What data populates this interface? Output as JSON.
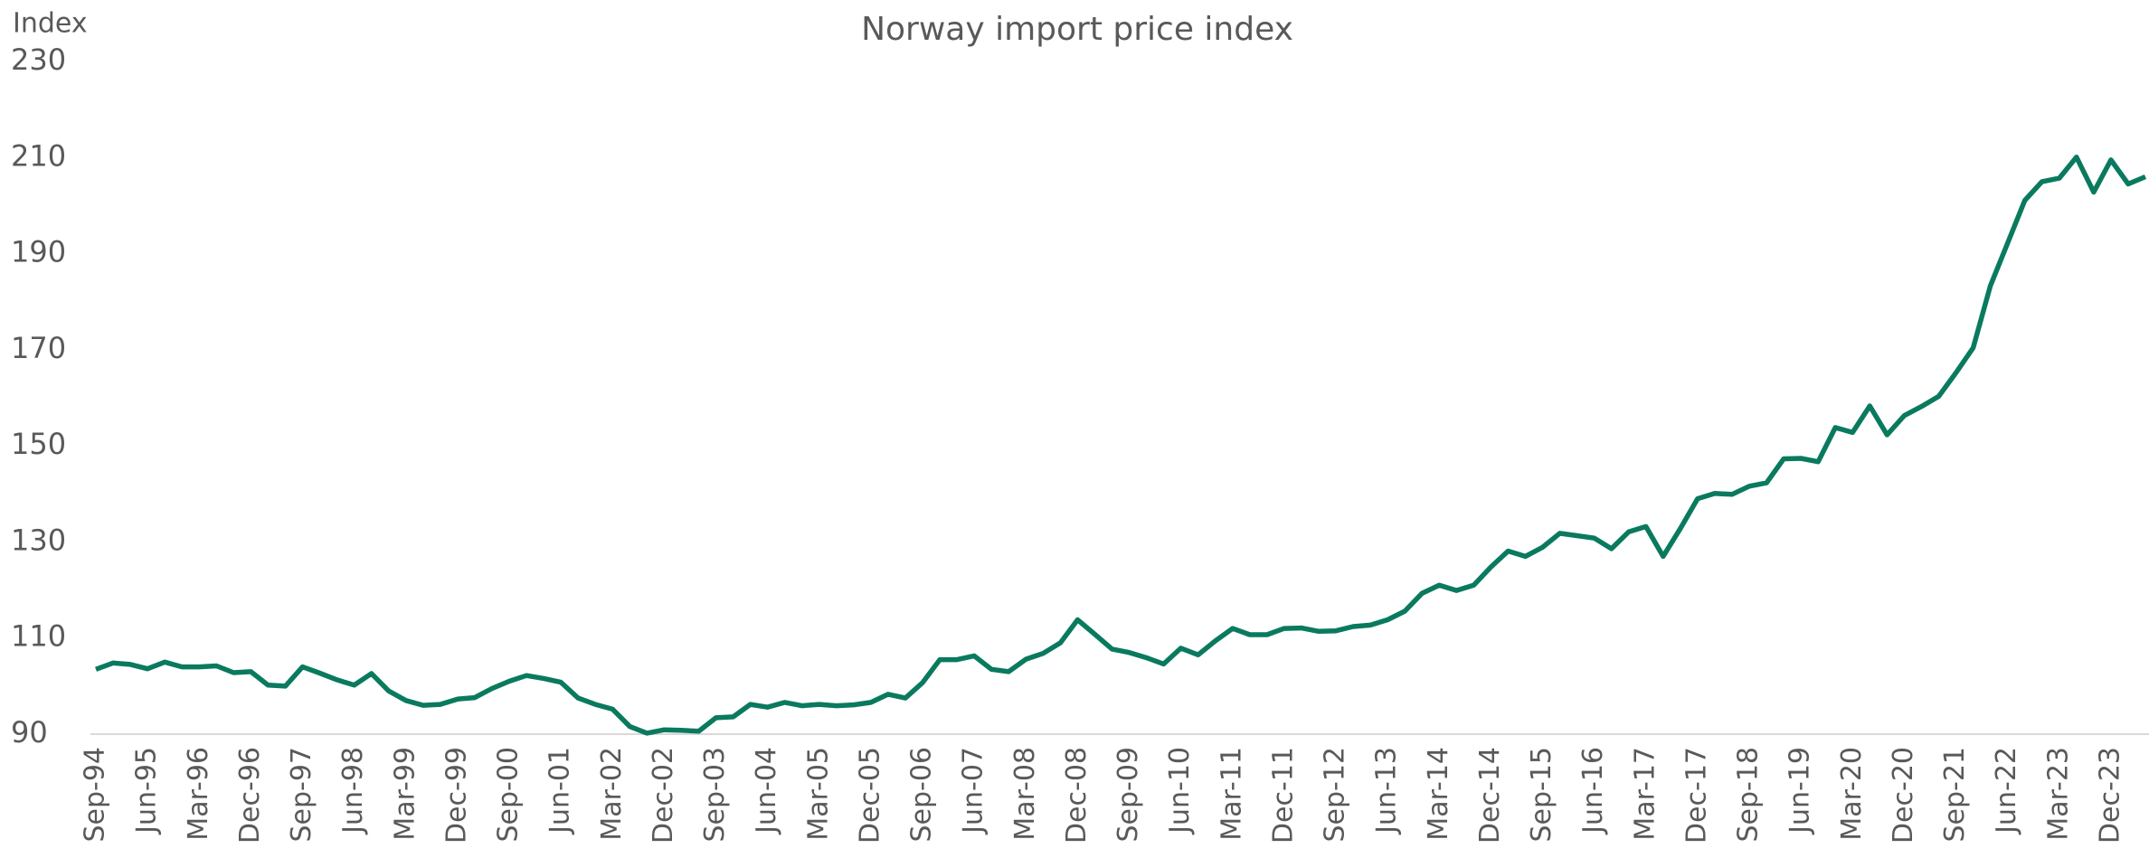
{
  "chart_data": {
    "type": "line",
    "title": "Norway import price index",
    "y_label": "Index",
    "categories": [
      "Sep-94",
      null,
      null,
      "Jun-95",
      null,
      null,
      "Mar-96",
      null,
      null,
      "Dec-96",
      null,
      null,
      "Sep-97",
      null,
      null,
      "Jun-98",
      null,
      null,
      "Mar-99",
      null,
      null,
      "Dec-99",
      null,
      null,
      "Sep-00",
      null,
      null,
      "Jun-01",
      null,
      null,
      "Mar-02",
      null,
      null,
      "Dec-02",
      null,
      null,
      "Sep-03",
      null,
      null,
      "Jun-04",
      null,
      null,
      "Mar-05",
      null,
      null,
      "Dec-05",
      null,
      null,
      "Sep-06",
      null,
      null,
      "Jun-07",
      null,
      null,
      "Mar-08",
      null,
      null,
      "Dec-08",
      null,
      null,
      "Sep-09",
      null,
      null,
      "Jun-10",
      null,
      null,
      "Mar-11",
      null,
      null,
      "Dec-11",
      null,
      null,
      "Sep-12",
      null,
      null,
      "Jun-13",
      null,
      null,
      "Mar-14",
      null,
      null,
      "Dec-14",
      null,
      null,
      "Sep-15",
      null,
      null,
      "Jun-16",
      null,
      null,
      "Mar-17",
      null,
      null,
      "Dec-17",
      null,
      null,
      "Sep-18",
      null,
      null,
      "Jun-19",
      null,
      null,
      "Mar-20",
      null,
      null,
      "Dec-20",
      null,
      null,
      "Sep-21",
      null,
      null,
      "Jun-22",
      null,
      null,
      "Mar-23",
      null,
      null,
      "Dec-23",
      null,
      null
    ],
    "series": [
      {
        "name": "Import price index",
        "color": "#0a7a5e",
        "values": [
          103.5,
          104.8,
          104.5,
          103.6,
          105,
          104,
          104,
          104.2,
          102.8,
          103,
          100.2,
          100,
          104,
          102.7,
          101.3,
          100.2,
          102.6,
          99,
          97,
          96,
          96.2,
          97.3,
          97.6,
          99.5,
          101,
          102.2,
          101.6,
          100.8,
          97.5,
          96.2,
          95.2,
          91.6,
          90.2,
          90.9,
          90.8,
          90.6,
          93.4,
          93.6,
          96.2,
          95.6,
          96.6,
          95.9,
          96.2,
          95.9,
          96.1,
          96.6,
          98.3,
          97.5,
          100.7,
          105.5,
          105.5,
          106.3,
          103.5,
          103,
          105.6,
          106.8,
          109,
          113.8,
          110.8,
          107.7,
          107,
          105.9,
          104.6,
          107.9,
          106.5,
          109.4,
          112,
          110.7,
          110.7,
          112,
          112.1,
          111.4,
          111.5,
          112.4,
          112.7,
          113.8,
          115.6,
          119.3,
          121,
          119.9,
          121,
          124.8,
          128.1,
          127,
          128.9,
          131.8,
          131.3,
          130.8,
          128.6,
          132.1,
          133.2,
          127,
          132.8,
          139,
          140.1,
          139.9,
          141.6,
          142.3,
          147.3,
          147.4,
          146.7,
          153.8,
          152.8,
          158.3,
          152.3,
          156.3,
          158.2,
          160.3,
          165.2,
          170.4,
          183.3,
          192.2,
          201.1,
          205,
          205.7,
          210.1,
          202.8,
          209.5,
          204.5,
          206
        ]
      }
    ],
    "ylim": [
      90,
      230
    ],
    "yticks": [
      90,
      110,
      130,
      150,
      170,
      190,
      210,
      230
    ],
    "grid": false
  }
}
